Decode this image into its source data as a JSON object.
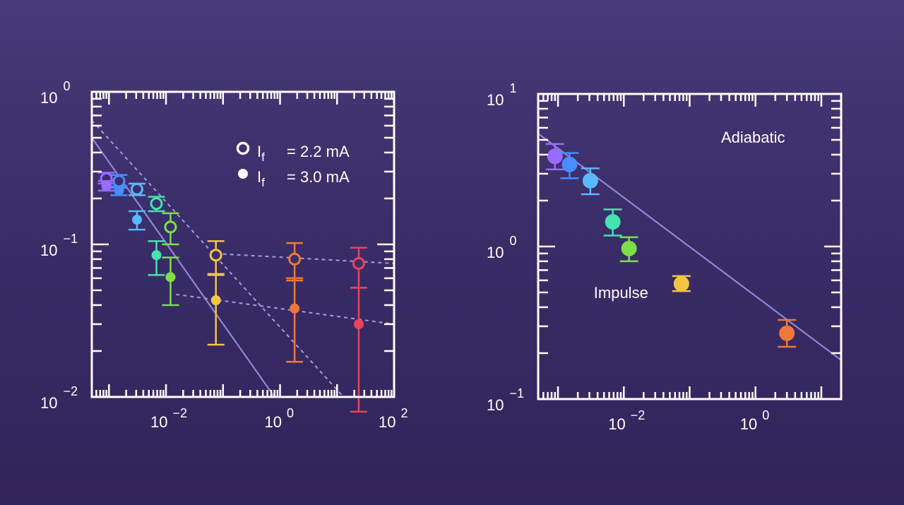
{
  "colors": {
    "axis": "#ffffff",
    "fit_line": "#8f86d6",
    "guide_line": "#a79be0",
    "text": "#ffffff"
  },
  "chart_data": [
    {
      "id": "left",
      "type": "scatter",
      "xscale": "log",
      "yscale": "log",
      "xlim": [
        0.0005,
        100
      ],
      "ylim": [
        0.01,
        1
      ],
      "x_ticks": [
        {
          "value": 0.01,
          "base": "10",
          "exp": "−2"
        },
        {
          "value": 1,
          "base": "10",
          "exp": "0"
        },
        {
          "value": 100,
          "base": "10",
          "exp": "2"
        }
      ],
      "y_ticks": [
        {
          "value": 1,
          "base": "10",
          "exp": "0"
        },
        {
          "value": 0.1,
          "base": "10",
          "exp": "−1"
        },
        {
          "value": 0.01,
          "base": "10",
          "exp": "−2"
        }
      ],
      "legend": {
        "placement": "top-right",
        "entries": [
          {
            "marker": "open",
            "symbol": "I",
            "sub": "f",
            "text": "= 2.2 mA"
          },
          {
            "marker": "filled",
            "symbol": "I",
            "sub": "f",
            "text": "= 3.0 mA"
          }
        ]
      },
      "series": [
        {
          "marker": "open",
          "points": [
            {
              "x": 0.0009,
              "y": 0.27,
              "lo": 0.25,
              "hi": 0.295,
              "color": "#9b6bff"
            },
            {
              "x": 0.0015,
              "y": 0.26,
              "lo": 0.235,
              "hi": 0.285,
              "color": "#4b8cff"
            },
            {
              "x": 0.0031,
              "y": 0.23,
              "lo": 0.21,
              "hi": 0.25,
              "color": "#5ab8ff"
            },
            {
              "x": 0.0068,
              "y": 0.185,
              "lo": 0.165,
              "hi": 0.205,
              "color": "#46e2b0"
            },
            {
              "x": 0.012,
              "y": 0.13,
              "lo": 0.1,
              "hi": 0.16,
              "color": "#7de048"
            },
            {
              "x": 0.075,
              "y": 0.085,
              "lo": 0.063,
              "hi": 0.105,
              "color": "#f4c542"
            },
            {
              "x": 1.8,
              "y": 0.08,
              "lo": 0.058,
              "hi": 0.102,
              "color": "#f0783a"
            },
            {
              "x": 24,
              "y": 0.075,
              "lo": 0.052,
              "hi": 0.095,
              "color": "#e8445a"
            }
          ]
        },
        {
          "marker": "filled",
          "points": [
            {
              "x": 0.0009,
              "y": 0.24,
              "lo": 0.225,
              "hi": 0.26,
              "color": "#9b6bff"
            },
            {
              "x": 0.0015,
              "y": 0.225,
              "lo": 0.21,
              "hi": 0.24,
              "color": "#4b8cff"
            },
            {
              "x": 0.0031,
              "y": 0.145,
              "lo": 0.125,
              "hi": 0.165,
              "color": "#5ab8ff"
            },
            {
              "x": 0.0068,
              "y": 0.085,
              "lo": 0.063,
              "hi": 0.105,
              "color": "#46e2b0"
            },
            {
              "x": 0.012,
              "y": 0.061,
              "lo": 0.04,
              "hi": 0.082,
              "color": "#7de048"
            },
            {
              "x": 0.075,
              "y": 0.043,
              "lo": 0.022,
              "hi": 0.064,
              "color": "#f4c542"
            },
            {
              "x": 1.8,
              "y": 0.038,
              "lo": 0.017,
              "hi": 0.06,
              "color": "#f0783a"
            },
            {
              "x": 24,
              "y": 0.03,
              "lo": 0.008,
              "hi": 0.052,
              "color": "#e8445a"
            }
          ]
        }
      ],
      "lines": [
        {
          "style": "solid",
          "x": [
            0.0005,
            0.8
          ],
          "y": [
            0.5,
            0.01
          ]
        },
        {
          "style": "dashed",
          "x": [
            0.0005,
            13
          ],
          "y": [
            0.65,
            0.01
          ]
        },
        {
          "style": "dashed",
          "x": [
            0.075,
            100
          ],
          "y": [
            0.087,
            0.075
          ]
        },
        {
          "style": "dashed",
          "x": [
            0.015,
            100
          ],
          "y": [
            0.047,
            0.03
          ]
        }
      ]
    },
    {
      "id": "right",
      "type": "scatter",
      "xscale": "log",
      "yscale": "log",
      "xlim": [
        0.0005,
        20
      ],
      "ylim": [
        0.1,
        10
      ],
      "x_ticks": [
        {
          "value": 0.01,
          "base": "10",
          "exp": "−2"
        },
        {
          "value": 1,
          "base": "10",
          "exp": "0"
        }
      ],
      "y_ticks": [
        {
          "value": 10,
          "base": "10",
          "exp": "1"
        },
        {
          "value": 1,
          "base": "10",
          "exp": "0"
        },
        {
          "value": 0.1,
          "base": "10",
          "exp": "−1"
        }
      ],
      "annotations": [
        {
          "text": "Adiabatic",
          "x": 0.3,
          "y": 4.8
        },
        {
          "text": "Impulse",
          "x": 0.0035,
          "y": 0.46
        }
      ],
      "series": [
        {
          "marker": "filled",
          "points": [
            {
              "x": 0.0009,
              "y": 3.9,
              "lo": 3.2,
              "hi": 4.7,
              "color": "#9b6bff"
            },
            {
              "x": 0.0015,
              "y": 3.45,
              "lo": 2.8,
              "hi": 4.1,
              "color": "#4b8cff"
            },
            {
              "x": 0.0031,
              "y": 2.7,
              "lo": 2.2,
              "hi": 3.25,
              "color": "#5ab8ff"
            },
            {
              "x": 0.0068,
              "y": 1.45,
              "lo": 1.18,
              "hi": 1.75,
              "color": "#46e2b0"
            },
            {
              "x": 0.012,
              "y": 0.97,
              "lo": 0.8,
              "hi": 1.15,
              "color": "#7de048"
            },
            {
              "x": 0.075,
              "y": 0.57,
              "lo": 0.51,
              "hi": 0.64,
              "color": "#f4c542"
            },
            {
              "x": 3,
              "y": 0.27,
              "lo": 0.22,
              "hi": 0.33,
              "color": "#f0783a"
            }
          ]
        }
      ],
      "lines": [
        {
          "style": "solid",
          "x": [
            0.0005,
            20
          ],
          "y": [
            5.5,
            0.18
          ]
        }
      ]
    }
  ]
}
